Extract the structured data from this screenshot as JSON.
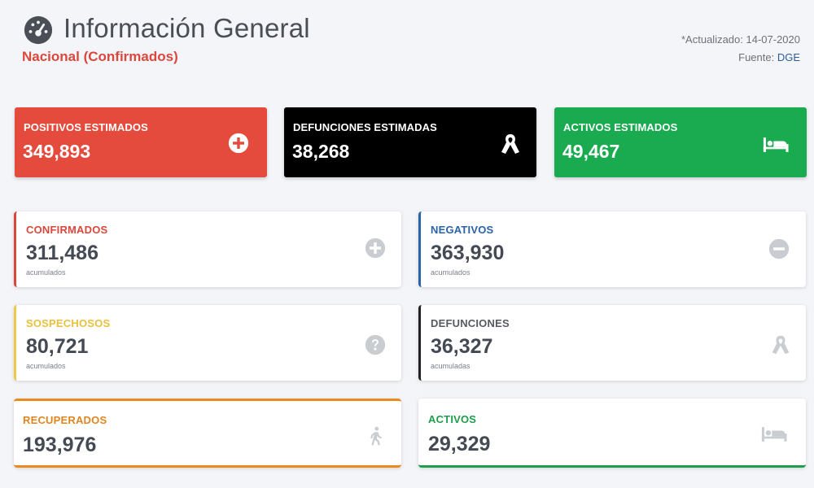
{
  "header": {
    "title": "Información General",
    "subtitle": "Nacional (Confirmados)",
    "updated": "*Actualizado: 14-07-2020",
    "source_prefix": "Fuente: ",
    "source": "DGE",
    "icon": "dashboard-gauge-icon"
  },
  "estimates": [
    {
      "label": "POSITIVOS ESTIMADOS",
      "value": "349,893",
      "icon": "plus-circle-icon",
      "color": "#e44b3c"
    },
    {
      "label": "DEFUNCIONES ESTIMADAS",
      "value": "38,268",
      "icon": "ribbon-icon",
      "color": "#000000"
    },
    {
      "label": "ACTIVOS ESTIMADOS",
      "value": "49,467",
      "icon": "bed-icon",
      "color": "#1aab50"
    }
  ],
  "stats": [
    {
      "label": "CONFIRMADOS",
      "value": "311,486",
      "note": "acumulados",
      "icon": "plus-circle-icon",
      "accent": "#d9473d"
    },
    {
      "label": "NEGATIVOS",
      "value": "363,930",
      "note": "acumulados",
      "icon": "minus-circle-icon",
      "accent": "#2a63a8"
    },
    {
      "label": "SOSPECHOSOS",
      "value": "80,721",
      "note": "acumulados",
      "icon": "question-circle-icon",
      "accent": "#ecc94b"
    },
    {
      "label": "DEFUNCIONES",
      "value": "36,327",
      "note": "acumuladas",
      "icon": "ribbon-icon",
      "accent": "#222222"
    },
    {
      "label": "RECUPERADOS",
      "value": "193,976",
      "icon": "walking-person-icon",
      "accent": "#ec8a22"
    },
    {
      "label": "ACTIVOS",
      "value": "29,329",
      "icon": "bed-icon",
      "accent": "#1e9e4c"
    }
  ]
}
